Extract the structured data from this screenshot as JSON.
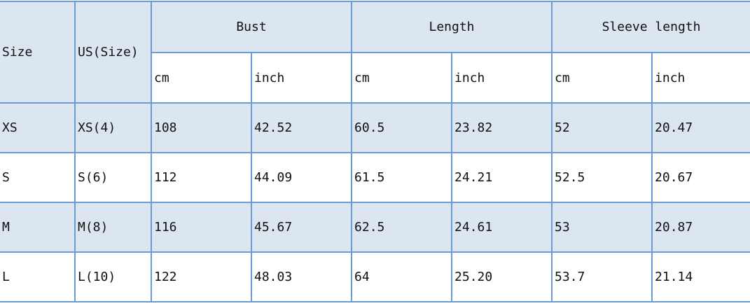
{
  "headers": {
    "size": "Size",
    "us_size": "US(Size)",
    "groups": [
      "Bust",
      "Length",
      "Sleeve length"
    ],
    "units": [
      "cm",
      "inch",
      "cm",
      "inch",
      "cm",
      "inch"
    ]
  },
  "rows": [
    [
      "XS",
      "XS(4)",
      "108",
      "42.52",
      "60.5",
      "23.82",
      "52",
      "20.47"
    ],
    [
      "S",
      "S(6)",
      "112",
      "44.09",
      "61.5",
      "24.21",
      "52.5",
      "20.67"
    ],
    [
      "M",
      "M(8)",
      "116",
      "45.67",
      "62.5",
      "24.61",
      "53",
      "20.87"
    ],
    [
      "L",
      "L(10)",
      "122",
      "48.03",
      "64",
      "25.20",
      "53.7",
      "21.14"
    ]
  ],
  "colors": {
    "header_fill": "#dce6f1",
    "border": "#6b9bd6"
  }
}
